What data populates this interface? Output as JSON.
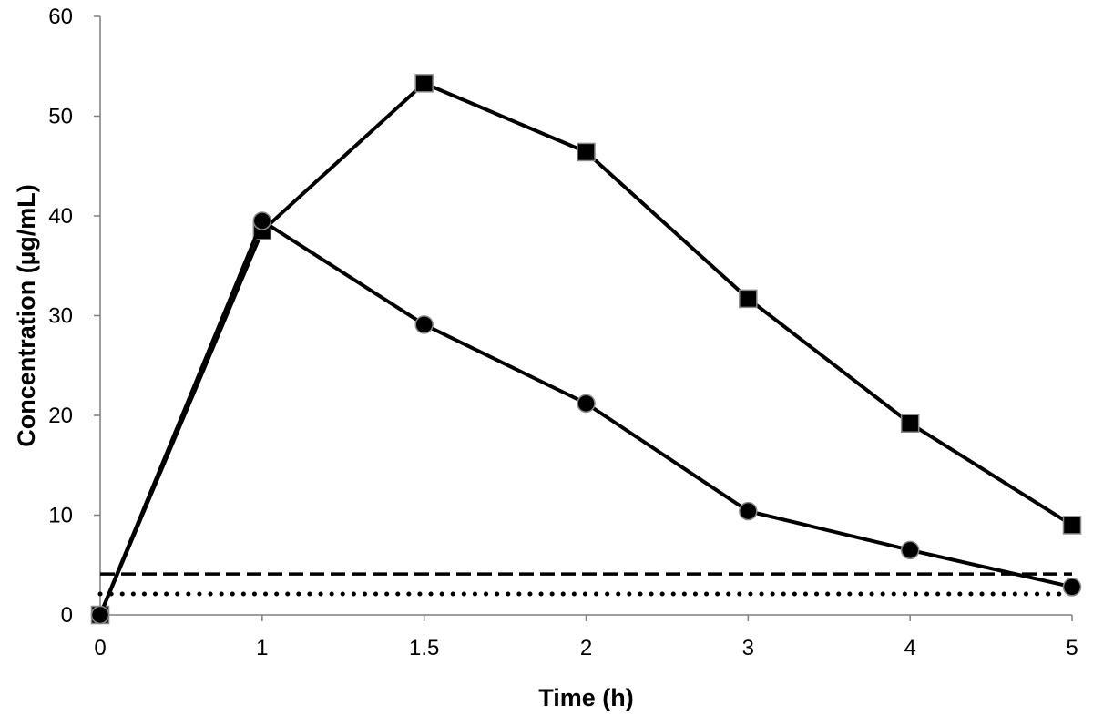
{
  "chart_data": {
    "type": "line",
    "title": "",
    "xlabel": "Time (h)",
    "ylabel": "Concentration (µg/mL)",
    "x_scale": "categorical",
    "categories": [
      "0",
      "1",
      "1.5",
      "2",
      "3",
      "4",
      "5"
    ],
    "ylim": [
      0,
      60
    ],
    "yticks": [
      0,
      10,
      20,
      30,
      40,
      50,
      60
    ],
    "grid": false,
    "legend": "none",
    "series": [
      {
        "marker": "square",
        "values": [
          0,
          38.5,
          53.3,
          46.4,
          31.7,
          19.2,
          9.0
        ]
      },
      {
        "marker": "circle",
        "values": [
          0,
          39.5,
          29.1,
          21.2,
          10.4,
          6.5,
          2.8
        ]
      }
    ],
    "reference_lines": [
      {
        "style": "dashed",
        "y": 4.1
      },
      {
        "style": "dotted",
        "y": 2.1
      }
    ],
    "colors": {
      "line": "#000000",
      "marker_fill": "#000000"
    }
  }
}
